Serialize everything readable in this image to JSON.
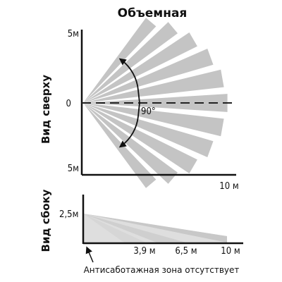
{
  "title": "Объемная",
  "top_view": {
    "label": "Вид сверху",
    "y_top_label": "5м",
    "y_mid_label": "0",
    "y_bottom_label": "5м",
    "x_end_label": "10 м",
    "angle_label": "90°"
  },
  "side_view": {
    "label": "Вид сбоку",
    "height_label": "2,5м",
    "distance_labels": [
      "3,9 м",
      "6,5 м",
      "10 м"
    ],
    "caption": "Антисаботажная зона отсутствует"
  },
  "colors": {
    "beam": "#c4c4c4",
    "beam_light": "#dcdcdc",
    "axis": "#111111"
  }
}
